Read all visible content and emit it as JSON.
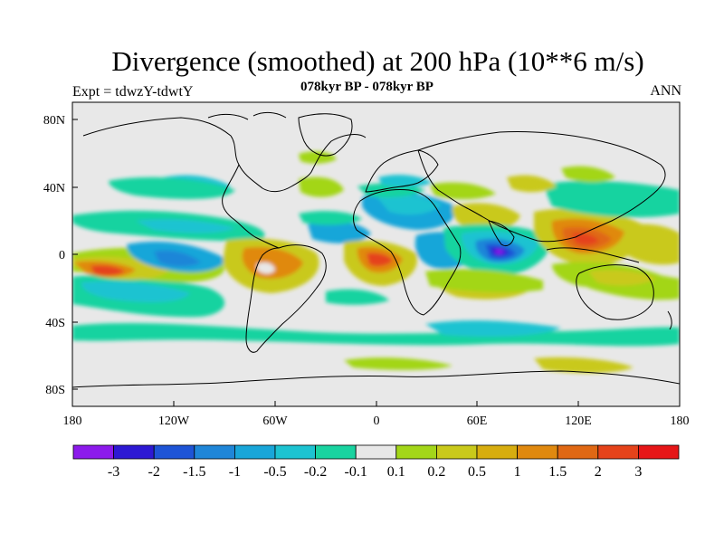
{
  "title": "Divergence (smoothed) at 200 hPa (10**6 m/s)",
  "experiment": "Expt = tdwzY-tdwtY",
  "period": "078kyr BP - 078kyr BP",
  "season": "ANN",
  "lat_ticks": [
    "80N",
    "40N",
    "0",
    "40S",
    "80S"
  ],
  "lon_ticks": [
    "180",
    "120W",
    "60W",
    "0",
    "60E",
    "120E",
    "180"
  ],
  "colorbar": {
    "labels": [
      "-3",
      "-2",
      "-1.5",
      "-1",
      "-0.5",
      "-0.2",
      "-0.1",
      "0.1",
      "0.2",
      "0.5",
      "1",
      "1.5",
      "2",
      "3"
    ],
    "colors": [
      "#8c1aeb",
      "#2d19d3",
      "#1e54d6",
      "#1f86d8",
      "#19a6d9",
      "#1dc3d1",
      "#19d3a0",
      "#e8e8e8",
      "#a3d619",
      "#c9c91b",
      "#d7ad0f",
      "#e0890f",
      "#e06814",
      "#e5431a",
      "#e61618"
    ]
  },
  "colors": {
    "background_field": "#e8e8e8",
    "coast": "#000000"
  },
  "field_regions": [
    {
      "region": "central-south-pacific",
      "level": "2"
    },
    {
      "region": "eastern-equatorial-pacific",
      "level": "-1"
    },
    {
      "region": "amazon",
      "level": "1"
    },
    {
      "region": "equatorial-atlantic",
      "level": "-0.5"
    },
    {
      "region": "central-africa",
      "level": "1.5"
    },
    {
      "region": "east-africa",
      "level": "-0.5"
    },
    {
      "region": "central-indian-ocean",
      "level": "-3"
    },
    {
      "region": "maritime-continent",
      "level": "1.5"
    },
    {
      "region": "western-pacific",
      "level": "0.5"
    },
    {
      "region": "southern-ocean",
      "level": "-0.2"
    },
    {
      "region": "north-africa",
      "level": "-0.5"
    },
    {
      "region": "arabia",
      "level": "0.5"
    }
  ]
}
